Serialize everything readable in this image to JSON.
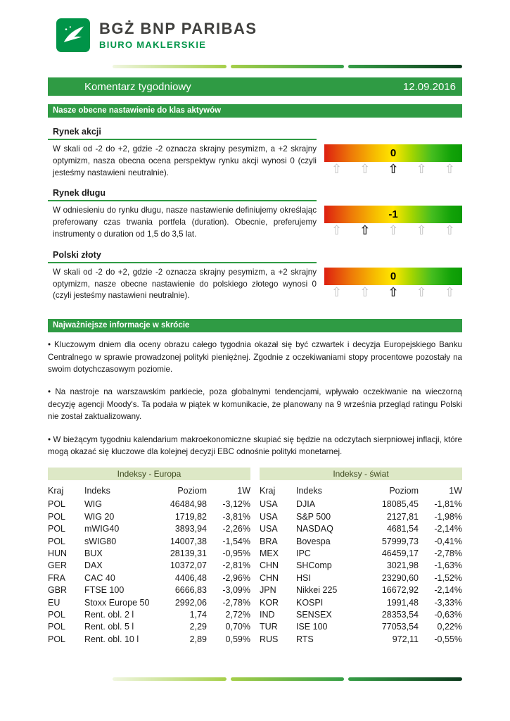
{
  "colors": {
    "accent_green": "#2F9B44",
    "logo_green": "#009448",
    "table_header_bg": "#DDE8C6",
    "gauge_red": "#DD1F10",
    "gauge_yellow": "#FFE600",
    "gauge_green": "#0B9A04"
  },
  "brand": {
    "name": "BGŻ BNP PARIBAS",
    "subtitle": "BIURO MAKLERSKIE",
    "logo_icon": "bird-swoosh-icon"
  },
  "title_bar": {
    "title": "Komentarz tygodniowy",
    "date": "12.09.2016"
  },
  "gauge": {
    "arrow_glyph": "⇧",
    "scale_min": "-2",
    "scale_max": "+2"
  },
  "sections": {
    "assets": {
      "heading": "Nasze obecne nastawienie do klas aktywów",
      "items": [
        {
          "title": "Rynek akcji",
          "text": "W skali od -2 do +2, gdzie -2 oznacza skrajny pesymizm, a +2 skrajny optymizm, nasza obecna ocena perspektyw rynku akcji wynosi 0 (czyli jesteśmy nastawieni neutralnie).",
          "value": "0",
          "arrow_index": 2
        },
        {
          "title": "Rynek długu",
          "text": "W odniesieniu do rynku długu, nasze nastawienie definiujemy określając preferowany czas trwania portfela (duration). Obecnie, preferujemy instrumenty o duration od 1,5 do 3,5 lat.",
          "value": "-1",
          "arrow_index": 1
        },
        {
          "title": "Polski złoty",
          "text": "W skali od -2 do +2, gdzie -2 oznacza skrajny pesymizm, a +2 skrajny optymizm, nasze obecne nastawienie do polskiego złotego wynosi 0 (czyli jesteśmy nastawieni neutralnie).",
          "value": "0",
          "arrow_index": 2
        }
      ]
    },
    "news": {
      "heading": "Najważniejsze informacje w skrócie",
      "bullets": [
        "• Kluczowym dniem dla oceny obrazu całego tygodnia okazał się być czwartek i decyzja Europejskiego Banku Centralnego w sprawie prowadzonej polityki pieniężnej. Zgodnie z oczekiwaniami stopy procentowe pozostały na swoim dotychczasowym poziomie.",
        "• Na nastroje na warszawskim parkiecie, poza globalnymi tendencjami, wpływało oczekiwanie na wieczorną decyzję agencji Moody's. Ta podała w piątek w komunikacie, że planowany na 9 września przegląd ratingu Polski nie został zaktualizowany.",
        "• W bieżącym tygodniu kalendarium makroekonomiczne skupiać się będzie na odczytach sierpniowej inflacji, które mogą okazać się kluczowe dla kolejnej decyzji EBC odnośnie polityki monetarnej."
      ]
    }
  },
  "tables": [
    {
      "title": "Indeksy - Europa",
      "columns": [
        "Kraj",
        "Indeks",
        "Poziom",
        "1W"
      ],
      "rows": [
        [
          "POL",
          "WIG",
          "46484,98",
          "-3,12%"
        ],
        [
          "POL",
          "WIG 20",
          "1719,82",
          "-3,81%"
        ],
        [
          "POL",
          "mWIG40",
          "3893,94",
          "-2,26%"
        ],
        [
          "POL",
          "sWIG80",
          "14007,38",
          "-1,54%"
        ],
        [
          "HUN",
          "BUX",
          "28139,31",
          "-0,95%"
        ],
        [
          "GER",
          "DAX",
          "10372,07",
          "-2,81%"
        ],
        [
          "FRA",
          "CAC 40",
          "4406,48",
          "-2,96%"
        ],
        [
          "GBR",
          "FTSE 100",
          "6666,83",
          "-3,09%"
        ],
        [
          "EU",
          "Stoxx Europe 50",
          "2992,06",
          "-2,78%"
        ],
        [
          "POL",
          "Rent. obl. 2 l",
          "1,74",
          "2,72%"
        ],
        [
          "POL",
          "Rent. obl. 5 l",
          "2,29",
          "0,70%"
        ],
        [
          "POL",
          "Rent. obl. 10 l",
          "2,89",
          "0,59%"
        ]
      ]
    },
    {
      "title": "Indeksy - świat",
      "columns": [
        "Kraj",
        "Indeks",
        "Poziom",
        "1W"
      ],
      "rows": [
        [
          "USA",
          "DJIA",
          "18085,45",
          "-1,81%"
        ],
        [
          "USA",
          "S&P 500",
          "2127,81",
          "-1,98%"
        ],
        [
          "USA",
          "NASDAQ",
          "4681,54",
          "-2,14%"
        ],
        [
          "BRA",
          "Bovespa",
          "57999,73",
          "-0,41%"
        ],
        [
          "MEX",
          "IPC",
          "46459,17",
          "-2,78%"
        ],
        [
          "CHN",
          "SHComp",
          "3021,98",
          "-1,63%"
        ],
        [
          "CHN",
          "HSI",
          "23290,60",
          "-1,52%"
        ],
        [
          "JPN",
          "Nikkei 225",
          "16672,92",
          "-2,14%"
        ],
        [
          "KOR",
          "KOSPI",
          "1991,48",
          "-3,33%"
        ],
        [
          "IND",
          "SENSEX",
          "28353,54",
          "-0,63%"
        ],
        [
          "TUR",
          "ISE 100",
          "77053,54",
          "0,22%"
        ],
        [
          "RUS",
          "RTS",
          "972,11",
          "-0,55%"
        ]
      ]
    }
  ]
}
